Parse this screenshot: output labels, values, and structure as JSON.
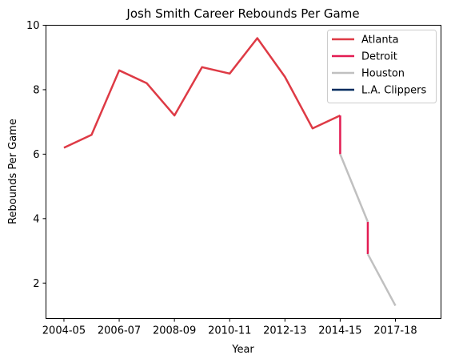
{
  "chart_data": {
    "type": "line",
    "title": "Josh Smith Career Rebounds Per Game",
    "xlabel": "Year",
    "ylabel": "Rebounds Per Game",
    "xlim": [
      -0.65,
      13.65
    ],
    "ylim": [
      0.9,
      10.0
    ],
    "x_ticks": [
      {
        "x": 0,
        "label": "2004-05"
      },
      {
        "x": 2,
        "label": "2006-07"
      },
      {
        "x": 4,
        "label": "2008-09"
      },
      {
        "x": 6,
        "label": "2010-11"
      },
      {
        "x": 8,
        "label": "2012-13"
      },
      {
        "x": 10,
        "label": "2014-15"
      },
      {
        "x": 12,
        "label": "2017-18"
      }
    ],
    "y_ticks": [
      {
        "y": 2,
        "label": "2"
      },
      {
        "y": 4,
        "label": "4"
      },
      {
        "y": 6,
        "label": "6"
      },
      {
        "y": 8,
        "label": "8"
      },
      {
        "y": 10,
        "label": "10"
      }
    ],
    "grid": false,
    "legend_position": "top-right",
    "series": [
      {
        "name": "Atlanta",
        "color": "#de3a45",
        "points": [
          {
            "x": 0,
            "y": 6.2
          },
          {
            "x": 1,
            "y": 6.6
          },
          {
            "x": 2,
            "y": 8.6
          },
          {
            "x": 3,
            "y": 8.2
          },
          {
            "x": 4,
            "y": 7.2
          },
          {
            "x": 5,
            "y": 8.7
          },
          {
            "x": 6,
            "y": 8.5
          },
          {
            "x": 7,
            "y": 9.6
          },
          {
            "x": 8,
            "y": 8.4
          },
          {
            "x": 9,
            "y": 6.8
          },
          {
            "x": 10,
            "y": 7.2
          }
        ]
      },
      {
        "name": "Detroit",
        "color": "#e31c52",
        "segments": [
          [
            {
              "x": 10,
              "y": 7.2
            },
            {
              "x": 10,
              "y": 6.0
            }
          ],
          [
            {
              "x": 11,
              "y": 3.9
            },
            {
              "x": 11,
              "y": 2.9
            }
          ]
        ]
      },
      {
        "name": "Houston",
        "color": "#c0c0c0",
        "segments": [
          [
            {
              "x": 10,
              "y": 6.0
            },
            {
              "x": 11,
              "y": 3.9
            }
          ],
          [
            {
              "x": 11,
              "y": 2.9
            },
            {
              "x": 12,
              "y": 1.3
            }
          ]
        ]
      },
      {
        "name": "L.A. Clippers",
        "color": "#002b5e",
        "segments": []
      }
    ]
  }
}
